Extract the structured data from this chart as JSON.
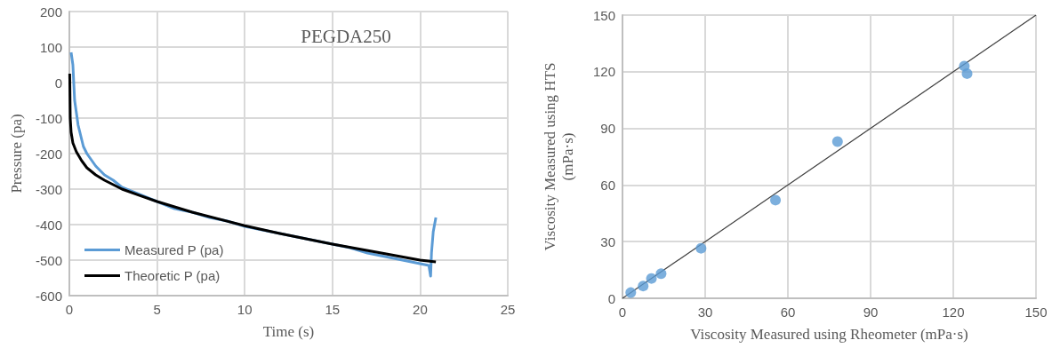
{
  "chart_data": [
    {
      "type": "line",
      "title": "PEGDA250",
      "xlabel": "Time (s)",
      "ylabel": "Pressure (pa)",
      "xlim": [
        0,
        25
      ],
      "xticks": [
        0,
        5,
        10,
        15,
        20,
        25
      ],
      "ylim": [
        -600,
        200
      ],
      "yticks": [
        -600,
        -500,
        -400,
        -300,
        -200,
        -100,
        0,
        100,
        200
      ],
      "grid": true,
      "legend": "bottom left",
      "marker": "none",
      "line_style": "solid",
      "series": [
        {
          "name": "Measured P (pa)",
          "color": "#5b9bd5",
          "x": [
            0.1,
            0.2,
            0.3,
            0.5,
            0.8,
            1,
            1.5,
            2,
            2.5,
            3,
            4,
            5,
            6,
            7,
            8,
            9,
            10,
            11,
            12,
            13,
            14,
            15,
            16,
            17,
            18,
            19,
            20,
            20.5,
            20.6,
            20.65,
            20.75,
            20.9
          ],
          "values": [
            85,
            50,
            -50,
            -120,
            -180,
            -200,
            -235,
            -260,
            -275,
            -295,
            -315,
            -335,
            -355,
            -365,
            -380,
            -390,
            -405,
            -415,
            -425,
            -435,
            -445,
            -455,
            -465,
            -480,
            -490,
            -500,
            -510,
            -515,
            -545,
            -480,
            -420,
            -380
          ]
        },
        {
          "name": "Theoretic P (pa)",
          "color": "#000000",
          "x": [
            0.02,
            0.05,
            0.1,
            0.2,
            0.4,
            0.7,
            1,
            1.5,
            2,
            3,
            4,
            5,
            7,
            10,
            12,
            15,
            18,
            20,
            20.9
          ],
          "values": [
            25,
            -100,
            -140,
            -170,
            -195,
            -220,
            -240,
            -260,
            -275,
            -300,
            -318,
            -335,
            -365,
            -403,
            -425,
            -455,
            -482,
            -500,
            -505
          ]
        }
      ]
    },
    {
      "type": "scatter",
      "xlabel": "Viscosity Measured using Rheometer (mPa·s)",
      "ylabel": "Viscosity Measured using HTS\n(mPa·s)",
      "xlim": [
        0,
        150
      ],
      "xticks": [
        0,
        30,
        60,
        90,
        120,
        150
      ],
      "ylim": [
        0,
        150
      ],
      "yticks": [
        0,
        30,
        60,
        90,
        120,
        150
      ],
      "grid": true,
      "marker": "circle",
      "series": [
        {
          "color": "#5b9bd5",
          "x": [
            3,
            7.5,
            10.5,
            14,
            28.5,
            55.5,
            78,
            124,
            125
          ],
          "values": [
            3,
            6.5,
            10.5,
            13,
            26.5,
            52,
            83,
            123,
            119
          ]
        },
        {
          "type": "line",
          "marker": "none",
          "color": "#404040",
          "x": [
            0,
            150
          ],
          "values": [
            0,
            150
          ]
        }
      ]
    }
  ]
}
